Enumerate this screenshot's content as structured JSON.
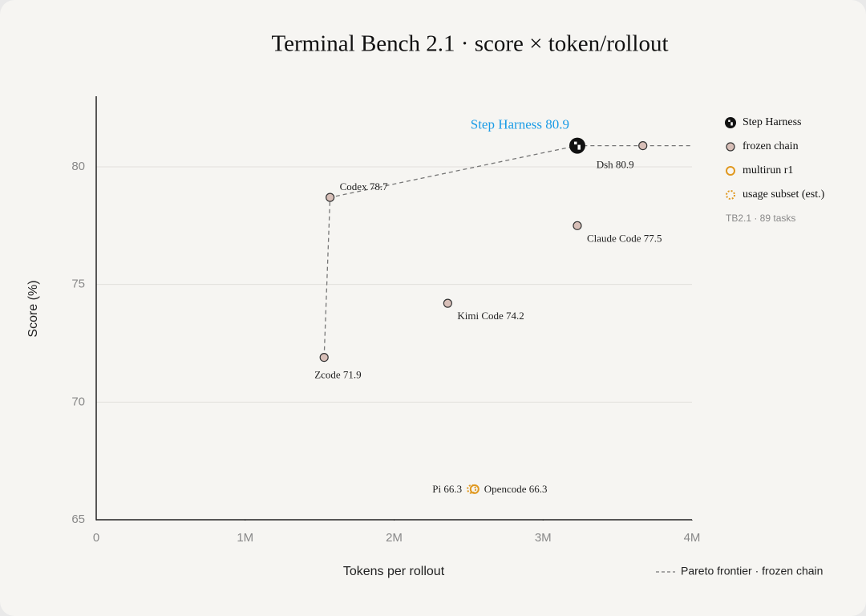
{
  "chart_data": {
    "type": "scatter",
    "title": "Terminal Bench 2.1 · score × token/rollout",
    "x_label": "Tokens per rollout",
    "y_label": "Score (%)",
    "xlim": [
      0,
      4000000
    ],
    "ylim": [
      65,
      83
    ],
    "xticks": [
      0,
      {
        "value": 1000000,
        "label": "1M"
      },
      {
        "value": 2000000,
        "label": "2M"
      },
      {
        "value": 3000000,
        "label": "3M"
      },
      {
        "value": 4000000,
        "label": "4M"
      }
    ],
    "yticks": [
      65,
      70,
      75,
      80
    ],
    "grid": true,
    "series": [
      {
        "name": "Step Harness",
        "color": "#111111",
        "style": "logo",
        "x": [
          3230000
        ],
        "values": [
          80.9
        ],
        "value_labels": [
          "Step Harness 80.9"
        ],
        "label_color": "#1a9be6"
      },
      {
        "name": "frozen chain",
        "color": "#d8bfb8",
        "style": "filled",
        "x": [
          3670000,
          1570000,
          3230000,
          2360000,
          1530000
        ],
        "values": [
          80.9,
          78.7,
          77.5,
          74.2,
          71.9
        ],
        "value_labels": [
          "Dsh 80.9",
          "Codex 78.7",
          "Claude Code 77.5",
          "Kimi Code 74.2",
          "Zcode 71.9"
        ]
      },
      {
        "name": "multirun r1",
        "color": "#e0981f",
        "style": "hollow",
        "x": [
          2540000
        ],
        "values": [
          66.3
        ],
        "value_labels": [
          "Opencode 66.3"
        ]
      },
      {
        "name": "usage subset (est.)",
        "color": "#e0981f",
        "style": "dotted",
        "x": [
          2520000
        ],
        "values": [
          66.3
        ],
        "value_labels": [
          "Pi 66.3"
        ]
      }
    ],
    "frontier": {
      "name": "Pareto frontier · frozen chain",
      "color": "#777777",
      "x": [
        1530000,
        1570000,
        3230000,
        3670000
      ],
      "values": [
        71.9,
        78.7,
        80.9,
        80.9
      ]
    },
    "legend_note": "TB2.1 · 89 tasks",
    "legend_position": "right"
  }
}
